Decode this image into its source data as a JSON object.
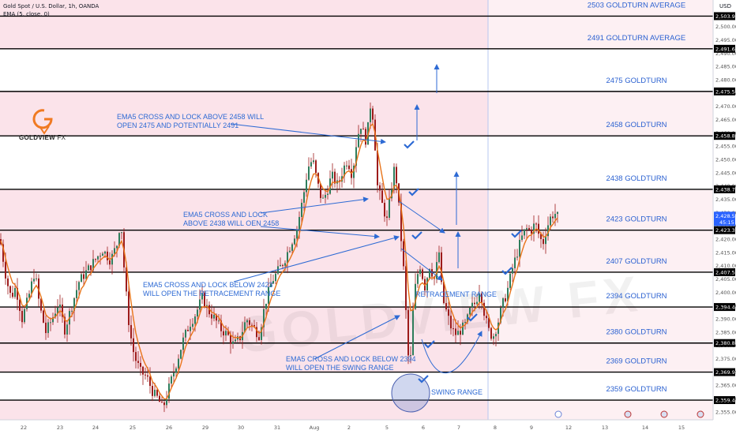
{
  "header": {
    "symbol_line": "Gold Spot / U.S. Dollar, 1h, OANDA",
    "indicator_line": "EMA (5, close, 0)",
    "currency": "USD"
  },
  "logo": {
    "brand": "GOLDVIEW",
    "suffix": "FX"
  },
  "colors": {
    "background": "#ffffff",
    "zone_fill": "#fbe3ea",
    "future_fill": "#fdf0f3",
    "candle": "#9d1b1b",
    "ema": "#e8741a",
    "level_line": "#000000",
    "level_label": "#2b61d1",
    "annotation": "#2d6ad4",
    "current_price_tag": "#2962ff"
  },
  "chart_data": {
    "type": "candlestick",
    "x_tick_labels": [
      "22",
      "23",
      "24",
      "25",
      "26",
      "29",
      "30",
      "31",
      "Aug",
      "2",
      "5",
      "6",
      "7",
      "8",
      "9",
      "12",
      "13",
      "14",
      "15"
    ],
    "ylim": [
      2352,
      2510
    ],
    "y_ticks": [
      2355,
      2360,
      2365,
      2370,
      2375,
      2380,
      2385,
      2390,
      2395,
      2400,
      2405,
      2410,
      2415,
      2420,
      2425,
      2430,
      2435,
      2440,
      2445,
      2450,
      2455,
      2460,
      2465,
      2470,
      2475,
      2480,
      2485,
      2490,
      2495,
      2500
    ],
    "price_labels": [
      {
        "price": 2503.922,
        "text": "2,503.922"
      },
      {
        "price": 2491.635,
        "text": "2,491.635"
      },
      {
        "price": 2475.588,
        "text": "2,475.588"
      },
      {
        "price": 2458.862,
        "text": "2,458.862"
      },
      {
        "price": 2438.747,
        "text": "2,438.747"
      },
      {
        "price": 2423.378,
        "text": "2,423.378"
      },
      {
        "price": 2407.556,
        "text": "2,407.556"
      },
      {
        "price": 2394.447,
        "text": "2,394.447"
      },
      {
        "price": 2380.886,
        "text": "2,380.886"
      },
      {
        "price": 2369.944,
        "text": "2,369.944"
      },
      {
        "price": 2359.414,
        "text": "2,359.414"
      }
    ],
    "current_price": {
      "value": 2428.535,
      "text": "2,428.535",
      "countdown": "45:15"
    },
    "levels": [
      {
        "price": 2503.922,
        "label": "2503 GOLDTURN AVERAGE"
      },
      {
        "price": 2491.635,
        "label": "2491 GOLDTURN AVERAGE"
      },
      {
        "price": 2475.588,
        "label": "2475 GOLDTURN"
      },
      {
        "price": 2458.862,
        "label": "2458 GOLDTURN"
      },
      {
        "price": 2438.747,
        "label": "2438 GOLDTURN"
      },
      {
        "price": 2423.378,
        "label": "2423 GOLDTURN"
      },
      {
        "price": 2407.556,
        "label": "2407 GOLDTURN"
      },
      {
        "price": 2394.447,
        "label": "2394 GOLDTURN"
      },
      {
        "price": 2380.886,
        "label": "2380 GOLDTURN"
      },
      {
        "price": 2369.944,
        "label": "2369 GOLDTURN"
      },
      {
        "price": 2359.414,
        "label": "2359 GOLDTURN"
      }
    ],
    "shaded_zones": [
      [
        2491.635,
        2510
      ],
      [
        2458.862,
        2475.588
      ],
      [
        2407.556,
        2438.747
      ],
      [
        2369.944,
        2394.447
      ],
      [
        2352,
        2359.414
      ]
    ],
    "annotations": [
      {
        "lines": [
          "EMA5 CROSS AND LOCK ABOVE 2458 WILL",
          "OPEN 2475 AND POTENTIALLY 2491"
        ]
      },
      {
        "lines": [
          "EMA5 CROSS AND LOCK",
          "ABOVE 2438 WILL OEN 2458"
        ]
      },
      {
        "lines": [
          "EMA5 CROSS AND LOCK BELOW 2423",
          "WILL OPEN THE RETRACEMENT RANGE"
        ]
      },
      {
        "lines": [
          "EMA5 CROSS AND LOCK BELOW 2394",
          "WILL OPEN THE SWING RANGE"
        ]
      },
      {
        "lines": [
          "RETRACEMENT RANGE"
        ]
      },
      {
        "lines": [
          "SWING RANGE"
        ]
      }
    ],
    "price_path": [
      [
        0,
        2420
      ],
      [
        8,
        2405
      ],
      [
        14,
        2398
      ],
      [
        20,
        2402
      ],
      [
        28,
        2390
      ],
      [
        36,
        2398
      ],
      [
        44,
        2408
      ],
      [
        50,
        2395
      ],
      [
        58,
        2385
      ],
      [
        66,
        2390
      ],
      [
        74,
        2396
      ],
      [
        82,
        2386
      ],
      [
        90,
        2394
      ],
      [
        100,
        2404
      ],
      [
        110,
        2408
      ],
      [
        120,
        2412
      ],
      [
        130,
        2416
      ],
      [
        140,
        2412
      ],
      [
        148,
        2418
      ],
      [
        153,
        2428
      ],
      [
        158,
        2405
      ],
      [
        164,
        2386
      ],
      [
        170,
        2376
      ],
      [
        178,
        2370
      ],
      [
        186,
        2368
      ],
      [
        194,
        2362
      ],
      [
        200,
        2360
      ],
      [
        206,
        2356
      ],
      [
        212,
        2362
      ],
      [
        218,
        2368
      ],
      [
        224,
        2374
      ],
      [
        232,
        2382
      ],
      [
        240,
        2388
      ],
      [
        248,
        2392
      ],
      [
        256,
        2398
      ],
      [
        264,
        2393
      ],
      [
        272,
        2390
      ],
      [
        280,
        2386
      ],
      [
        288,
        2384
      ],
      [
        296,
        2380
      ],
      [
        304,
        2383
      ],
      [
        312,
        2390
      ],
      [
        320,
        2387
      ],
      [
        328,
        2384
      ],
      [
        336,
        2396
      ],
      [
        344,
        2404
      ],
      [
        352,
        2408
      ],
      [
        360,
        2412
      ],
      [
        368,
        2418
      ],
      [
        376,
        2424
      ],
      [
        384,
        2436
      ],
      [
        390,
        2447
      ],
      [
        396,
        2450
      ],
      [
        402,
        2441
      ],
      [
        408,
        2434
      ],
      [
        414,
        2438
      ],
      [
        420,
        2444
      ],
      [
        428,
        2440
      ],
      [
        434,
        2446
      ],
      [
        440,
        2450
      ],
      [
        446,
        2444
      ],
      [
        452,
        2458
      ],
      [
        458,
        2464
      ],
      [
        462,
        2456
      ],
      [
        466,
        2462
      ],
      [
        470,
        2473
      ],
      [
        474,
        2460
      ],
      [
        478,
        2440
      ],
      [
        484,
        2433
      ],
      [
        490,
        2427
      ],
      [
        496,
        2440
      ],
      [
        500,
        2448
      ],
      [
        504,
        2436
      ],
      [
        508,
        2420
      ],
      [
        512,
        2405
      ],
      [
        516,
        2380
      ],
      [
        519,
        2368
      ],
      [
        522,
        2390
      ],
      [
        527,
        2405
      ],
      [
        532,
        2410
      ],
      [
        538,
        2402
      ],
      [
        544,
        2410
      ],
      [
        550,
        2405
      ],
      [
        556,
        2415
      ],
      [
        560,
        2398
      ],
      [
        566,
        2392
      ],
      [
        572,
        2386
      ],
      [
        578,
        2384
      ],
      [
        584,
        2386
      ],
      [
        590,
        2388
      ],
      [
        596,
        2394
      ],
      [
        602,
        2396
      ],
      [
        608,
        2402
      ],
      [
        612,
        2394
      ],
      [
        618,
        2386
      ],
      [
        624,
        2383
      ],
      [
        630,
        2388
      ],
      [
        636,
        2395
      ],
      [
        642,
        2400
      ],
      [
        648,
        2408
      ],
      [
        654,
        2414
      ],
      [
        660,
        2420
      ],
      [
        666,
        2424
      ],
      [
        672,
        2423
      ],
      [
        678,
        2426
      ],
      [
        684,
        2420
      ],
      [
        688,
        2419
      ],
      [
        692,
        2424
      ],
      [
        697,
        2428
      ],
      [
        702,
        2430
      ],
      [
        706,
        2428.5
      ]
    ]
  }
}
